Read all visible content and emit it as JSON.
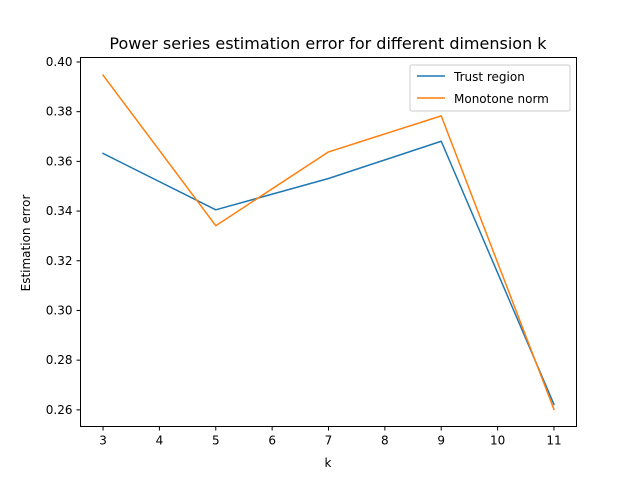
{
  "chart_data": {
    "type": "line",
    "title": "Power series estimation error for different dimension k",
    "xlabel": "k",
    "ylabel": "Estimation error",
    "x": [
      3,
      5,
      7,
      9,
      11
    ],
    "xlim": [
      2.6,
      11.4
    ],
    "ylim": [
      0.2533,
      0.4018
    ],
    "xticks": [
      3,
      4,
      5,
      6,
      7,
      8,
      9,
      10,
      11
    ],
    "yticks": [
      0.26,
      0.28,
      0.3,
      0.32,
      0.34,
      0.36,
      0.38,
      0.4
    ],
    "ytick_labels": [
      "0.26",
      "0.28",
      "0.30",
      "0.32",
      "0.34",
      "0.36",
      "0.38",
      "0.40"
    ],
    "grid": false,
    "legend_position": "top-right",
    "series": [
      {
        "name": "Trust region",
        "color": "#1f77b4",
        "values": [
          0.3632,
          0.3405,
          0.3531,
          0.3681,
          0.2622
        ]
      },
      {
        "name": "Monotone norm",
        "color": "#ff7f0e",
        "values": [
          0.3947,
          0.3341,
          0.3638,
          0.3783,
          0.2602
        ]
      }
    ]
  }
}
